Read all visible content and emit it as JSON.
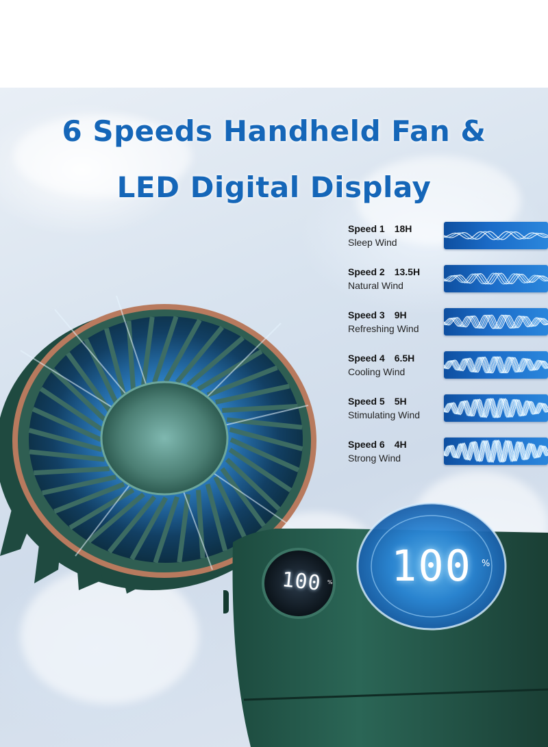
{
  "headline": {
    "line1": "6 Speeds Handheld Fan &",
    "line2": "LED Digital Display"
  },
  "speeds": [
    {
      "name": "Speed 1",
      "hours": "18H",
      "desc": "Sleep Wind"
    },
    {
      "name": "Speed 2",
      "hours": "13.5H",
      "desc": "Natural Wind"
    },
    {
      "name": "Speed 3",
      "hours": "9H",
      "desc": "Refreshing Wind"
    },
    {
      "name": "Speed 4",
      "hours": "6.5H",
      "desc": "Cooling Wind"
    },
    {
      "name": "Speed 5",
      "hours": "5H",
      "desc": "Stimulating Wind"
    },
    {
      "name": "Speed 6",
      "hours": "4H",
      "desc": "Strong Wind"
    }
  ],
  "display": {
    "value": "100",
    "unit": "%"
  },
  "colors": {
    "headline": "#1566b8",
    "fan_body": "#274f44",
    "fan_ring": "#b87a5e",
    "wave_panel": "#1b6cc8"
  }
}
